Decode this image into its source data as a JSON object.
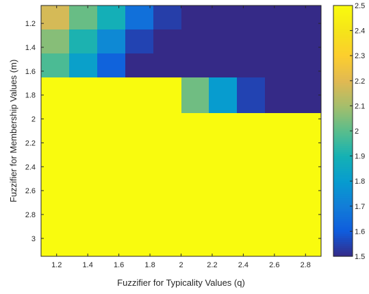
{
  "chart_data": {
    "type": "heatmap",
    "title": "",
    "xlabel": "Fuzzifier for Typicality Values (q)",
    "ylabel": "Fuzzifier for Membership Values (m)",
    "x": [
      1.1,
      1.3,
      1.5,
      1.7,
      1.9,
      2.1,
      2.3,
      2.5,
      2.7,
      2.9
    ],
    "y": [
      1.15,
      1.35,
      1.55,
      1.75,
      1.95,
      2.15,
      2.35,
      2.55,
      2.75,
      2.95
    ],
    "x_ticks": [
      "1.2",
      "1.4",
      "1.6",
      "1.8",
      "2",
      "2.2",
      "2.4",
      "2.6",
      "2.8"
    ],
    "y_ticks": [
      "1.2",
      "1.4",
      "1.6",
      "1.8",
      "2",
      "2.2",
      "2.4",
      "2.6",
      "2.8",
      "3"
    ],
    "xlim": [
      1.1,
      2.9
    ],
    "ylim": [
      1.05,
      3.15
    ],
    "y_reversed": true,
    "values": [
      [
        2.18,
        2.02,
        1.89,
        1.66,
        1.54,
        1.5,
        1.5,
        1.5,
        1.5,
        1.5
      ],
      [
        2.06,
        1.91,
        1.74,
        1.55,
        1.5,
        1.5,
        1.5,
        1.5,
        1.5,
        1.5
      ],
      [
        1.98,
        1.82,
        1.62,
        1.5,
        1.5,
        1.5,
        1.5,
        1.5,
        1.5,
        1.5
      ],
      [
        2.5,
        2.5,
        2.5,
        2.5,
        2.5,
        2.03,
        1.8,
        1.55,
        1.5,
        1.5
      ],
      [
        2.5,
        2.5,
        2.5,
        2.5,
        2.5,
        2.5,
        2.5,
        2.5,
        2.5,
        2.5
      ],
      [
        2.5,
        2.5,
        2.5,
        2.5,
        2.5,
        2.5,
        2.5,
        2.5,
        2.5,
        2.5
      ],
      [
        2.5,
        2.5,
        2.5,
        2.5,
        2.5,
        2.5,
        2.5,
        2.5,
        2.5,
        2.5
      ],
      [
        2.5,
        2.5,
        2.5,
        2.5,
        2.5,
        2.5,
        2.5,
        2.5,
        2.5,
        2.5
      ]
    ],
    "row_y": [
      [
        1.05,
        1.25
      ],
      [
        1.25,
        1.45
      ],
      [
        1.45,
        1.65
      ],
      [
        1.65,
        1.95
      ],
      [
        1.95,
        2.25
      ],
      [
        2.25,
        2.55
      ],
      [
        2.55,
        2.85
      ],
      [
        2.85,
        3.15
      ]
    ],
    "colorbar": {
      "min": 1.5,
      "max": 2.5,
      "ticks": [
        "1.5",
        "1.6",
        "1.7",
        "1.8",
        "1.9",
        "2",
        "2.1",
        "2.2",
        "2.3",
        "2.4",
        "2.5"
      ],
      "colormap": "parula"
    },
    "grid": false,
    "legend": "colorbar-right"
  }
}
